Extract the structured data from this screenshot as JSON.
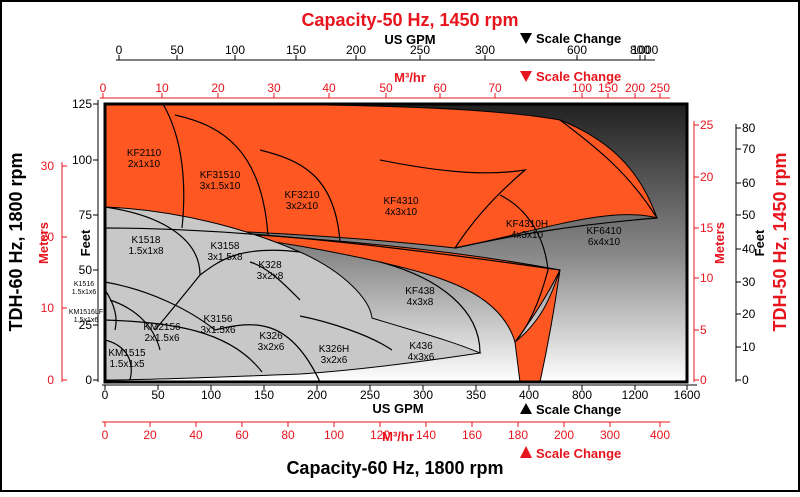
{
  "chart_data": {
    "type": "area",
    "title_top": "Capacity-50 Hz, 1450 rpm",
    "title_bottom": "Capacity-60 Hz, 1800 rpm",
    "ylabel_left": "TDH-60 Hz, 1800 rpm",
    "ylabel_right": "TDH-50 Hz, 1450 rpm",
    "axes": {
      "bottom_gpm": {
        "label": "US GPM",
        "ticks": [
          "0",
          "50",
          "100",
          "150",
          "200",
          "250",
          "300",
          "350",
          "400",
          "800",
          "1200",
          "1600"
        ]
      },
      "bottom_m3hr": {
        "label": "M³/hr",
        "ticks": [
          "0",
          "20",
          "40",
          "60",
          "80",
          "100",
          "120",
          "140",
          "160",
          "180",
          "200",
          "300",
          "400"
        ]
      },
      "top_gpm": {
        "label": "US GPM",
        "ticks": [
          "0",
          "50",
          "100",
          "150",
          "200",
          "250",
          "300",
          "600",
          "800",
          "1000"
        ]
      },
      "top_m3hr": {
        "label": "M³/hr",
        "ticks": [
          "0",
          "10",
          "20",
          "30",
          "40",
          "50",
          "60",
          "70",
          "100",
          "150",
          "200",
          "250"
        ]
      },
      "left_feet": {
        "label": "Feet",
        "ticks": [
          "0",
          "25",
          "50",
          "75",
          "100",
          "125"
        ]
      },
      "left_meters": {
        "label": "Meters",
        "ticks": [
          "0",
          "10",
          "20",
          "30"
        ]
      },
      "right_meters": {
        "label": "Meters",
        "ticks": [
          "0",
          "5",
          "10",
          "15",
          "20",
          "25"
        ]
      },
      "right_feet": {
        "label": "Feet",
        "ticks": [
          "0",
          "10",
          "20",
          "30",
          "40",
          "50",
          "60",
          "70",
          "80"
        ]
      }
    },
    "scale_change_label": "Scale Change",
    "colors": {
      "orange": "#ff5722",
      "gray": "#c8c8c8",
      "red": "#e8141d"
    },
    "regions_orange": [
      {
        "model": "KF2110",
        "size": "2x1x10"
      },
      {
        "model": "KF31510",
        "size": "3x1.5x10"
      },
      {
        "model": "KF3210",
        "size": "3x2x10"
      },
      {
        "model": "KF4310",
        "size": "4x3x10"
      },
      {
        "model": "KF4310H",
        "size": "4x3x10"
      },
      {
        "model": "KF6410",
        "size": "6x4x10"
      },
      {
        "model": "KF438",
        "size": "4x3x8"
      }
    ],
    "regions_gray": [
      {
        "model": "K1518",
        "size": "1.5x1x8"
      },
      {
        "model": "K3158",
        "size": "3x1.5x8"
      },
      {
        "model": "K328",
        "size": "3x2x8"
      },
      {
        "model": "K1516",
        "size": "1.5x1x6"
      },
      {
        "model": "KM1516LF",
        "size": "1.5x1x6"
      },
      {
        "model": "KM2156",
        "size": "2x1.5x6"
      },
      {
        "model": "K3156",
        "size": "3x1.5x6"
      },
      {
        "model": "K326",
        "size": "3x2x6"
      },
      {
        "model": "K326H",
        "size": "3x2x6"
      },
      {
        "model": "K436",
        "size": "4x3x6"
      },
      {
        "model": "KM1515",
        "size": "1.5x1x5"
      }
    ]
  }
}
